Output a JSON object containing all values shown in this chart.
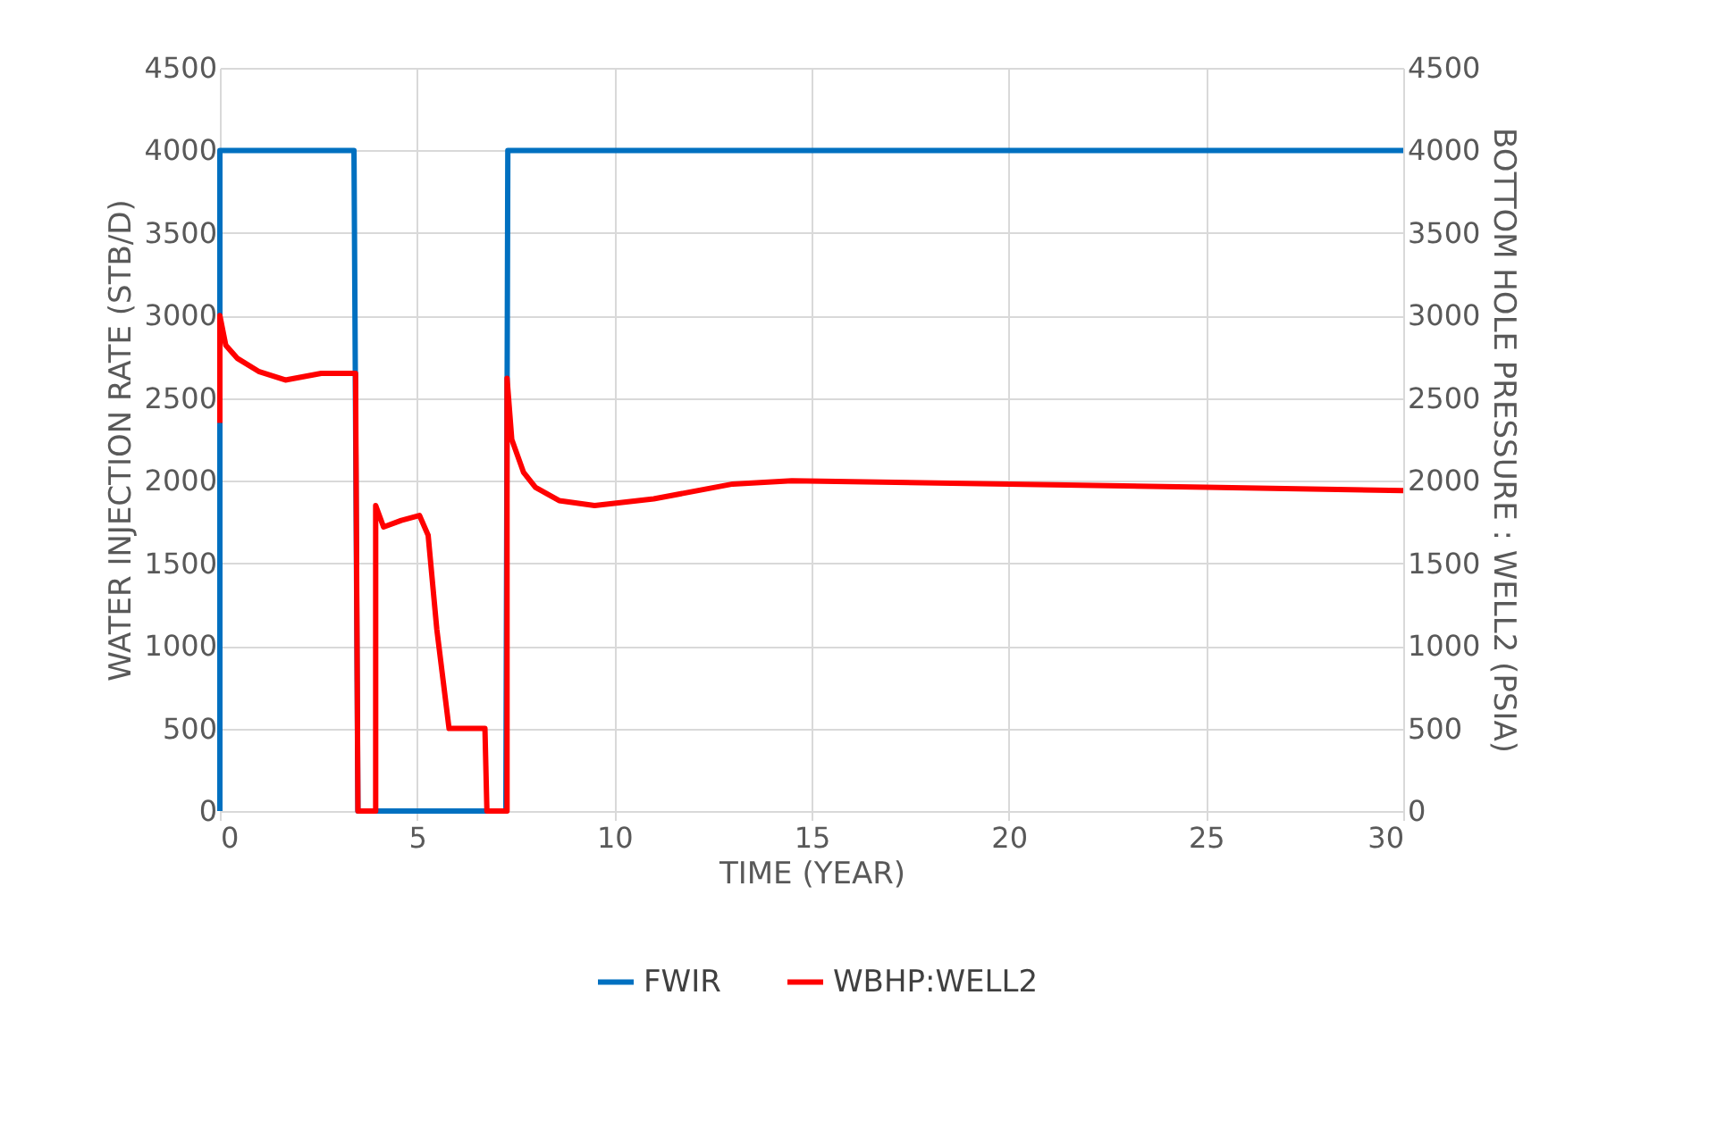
{
  "chart_data": {
    "type": "line",
    "xlabel": "TIME (YEAR)",
    "ylabel": "WATER INJECTION RATE (STB/D)",
    "y2label": "BOTTOM HOLE PRESSURE : WELL2 (PSIA)",
    "xlim": [
      0,
      30
    ],
    "xticks": [
      0,
      5,
      10,
      15,
      20,
      25,
      30
    ],
    "ylim": [
      0,
      4500
    ],
    "yticks": [
      0,
      500,
      1000,
      1500,
      2000,
      2500,
      3000,
      3500,
      4000,
      4500
    ],
    "y2lim": [
      0,
      4500
    ],
    "y2ticks": [
      0,
      500,
      1000,
      1500,
      2000,
      2500,
      3000,
      3500,
      4000,
      4500
    ],
    "grid": true,
    "legend": "bottom",
    "marker": "none",
    "line_style": "solid",
    "series": [
      {
        "name": "FWIR",
        "color": "#0070c0",
        "axis": "y",
        "x": [
          0,
          0,
          3.4,
          3.5,
          7.25,
          7.3,
          30
        ],
        "values": [
          0,
          4000,
          4000,
          0,
          0,
          4000,
          4000
        ]
      },
      {
        "name": "WBHP:WELL2",
        "color": "#ff0000",
        "axis": "y2",
        "x": [
          0,
          0,
          0.15,
          0.45,
          1.0,
          1.66,
          2.57,
          3.44,
          3.5,
          3.95,
          3.95,
          4.15,
          4.6,
          5.06,
          5.28,
          5.5,
          5.81,
          6.72,
          6.77,
          7.28,
          7.28,
          7.4,
          7.7,
          8.0,
          8.6,
          9.5,
          11,
          13,
          14.5,
          20,
          25,
          30
        ],
        "values": [
          2350,
          3000,
          2820,
          2740,
          2660,
          2610,
          2650,
          2650,
          0,
          0,
          1850,
          1720,
          1760,
          1790,
          1670,
          1100,
          500,
          500,
          0,
          0,
          2620,
          2250,
          2050,
          1960,
          1880,
          1850,
          1890,
          1980,
          2000,
          1980,
          1960,
          1940
        ]
      }
    ]
  }
}
